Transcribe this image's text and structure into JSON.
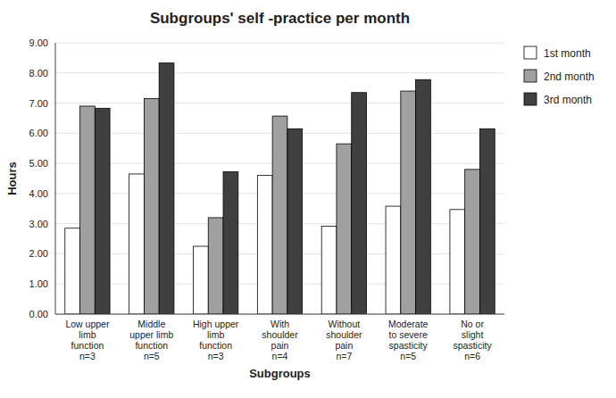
{
  "chart_data": {
    "type": "bar",
    "title": "Subgroups' self -practice per month",
    "xlabel": "Subgroups",
    "ylabel": "Hours",
    "categories": [
      "Low upper\nlimb\nfunction\nn=3",
      "Middle\nupper limb\nfunction\nn=5",
      "High upper\nlimb\nfunction\nn=3",
      "With\nshoulder\npain\nn=4",
      "Without\nshoulder\npain\nn=7",
      "Moderate\nto severe\nspasticity\nn=5",
      "No or\nslight\nspasticity\nn=6"
    ],
    "series": [
      {
        "name": "1st month",
        "color": "#ffffff",
        "values": [
          2.85,
          4.65,
          2.25,
          4.6,
          2.92,
          3.58,
          3.47
        ]
      },
      {
        "name": "2nd month",
        "color": "#a0a0a0",
        "values": [
          6.9,
          7.15,
          3.2,
          6.57,
          5.65,
          7.4,
          4.8
        ]
      },
      {
        "name": "3rd month",
        "color": "#404040",
        "values": [
          6.83,
          8.33,
          4.72,
          6.15,
          7.35,
          7.78,
          6.15
        ]
      }
    ],
    "ylim": [
      0,
      9.0
    ],
    "yticks": [
      {
        "value": 0,
        "label": "0.00"
      },
      {
        "value": 1,
        "label": "1.00"
      },
      {
        "value": 2,
        "label": "2.00"
      },
      {
        "value": 3,
        "label": "3.00"
      },
      {
        "value": 4,
        "label": "4.00"
      },
      {
        "value": 5,
        "label": "5.00"
      },
      {
        "value": 6,
        "label": "6.00"
      },
      {
        "value": 7,
        "label": "7.00"
      },
      {
        "value": 8,
        "label": "8.00"
      },
      {
        "value": 9,
        "label": "9.00"
      }
    ],
    "grid": true,
    "legend": "right"
  }
}
